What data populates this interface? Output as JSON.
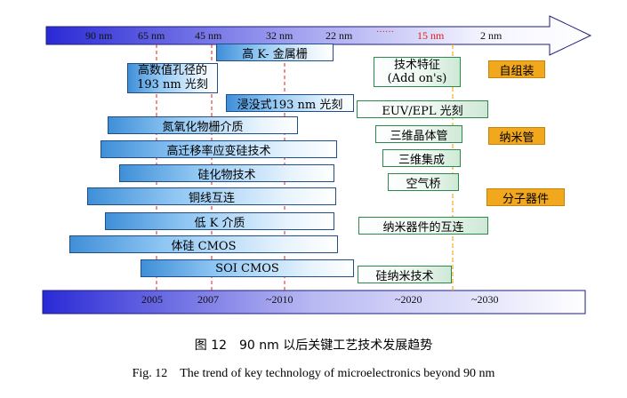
{
  "nodes_ticks": [
    {
      "label": "90 nm",
      "red": false
    },
    {
      "label": "65 nm",
      "red": false
    },
    {
      "label": "45 nm",
      "red": false
    },
    {
      "label": "32 nm",
      "red": false
    },
    {
      "label": "22 nm",
      "red": false
    },
    {
      "label": "······",
      "red": true
    },
    {
      "label": "15 nm",
      "red": true
    },
    {
      "label": "2 nm",
      "red": false
    }
  ],
  "left_techs": [
    {
      "label": "高 K- 金属栅"
    },
    {
      "label": "高数值孔径的",
      "label2": "193 nm 光刻"
    },
    {
      "label": "浸没式193 nm 光刻"
    },
    {
      "label": "氮氧化物栅介质"
    },
    {
      "label": "高迁移率应变硅技术"
    },
    {
      "label": "硅化物技术"
    },
    {
      "label": "铜线互连"
    },
    {
      "label": "低 K 介质"
    },
    {
      "label": "体硅 CMOS"
    },
    {
      "label": "SOI CMOS"
    }
  ],
  "right_techs": [
    {
      "label": "技术特征",
      "label2": "(Add on's)"
    },
    {
      "label": "EUV/EPL 光刻"
    },
    {
      "label": "三维晶体管"
    },
    {
      "label": "三维集成"
    },
    {
      "label": "空气桥"
    },
    {
      "label": "纳米器件的互连"
    },
    {
      "label": "硅纳米技术"
    }
  ],
  "future_techs": [
    {
      "label": "自组装"
    },
    {
      "label": "纳米管"
    },
    {
      "label": "分子器件"
    }
  ],
  "years": [
    "2005",
    "2007",
    "~2010",
    "~2020",
    "~2030"
  ],
  "caption": {
    "zh": "图 12　90 nm 以后关键工艺技术发展趋势",
    "en": "Fig. 12　The trend of key technology of microelectronics beyond 90 nm"
  },
  "colors": {
    "arrow_start": "#2a2ad6",
    "arrow_end": "#ffffff",
    "box_blue": "#3f8fd8",
    "box_green_border": "#2a8a4a",
    "box_orange": "#f2a81d",
    "guide_red": "#e0201a",
    "guide_orange": "#f2a81d"
  }
}
